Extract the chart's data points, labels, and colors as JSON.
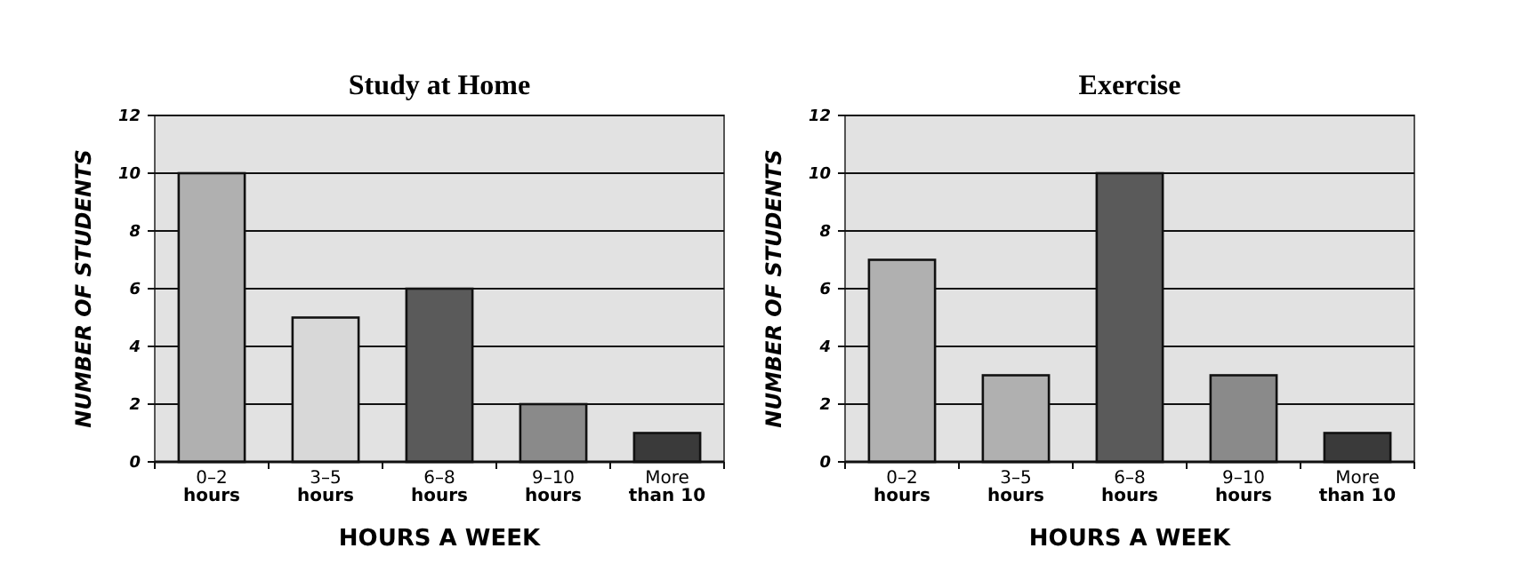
{
  "chart_data": [
    {
      "type": "bar",
      "title": "Study at Home",
      "xlabel": "HOURS A WEEK",
      "ylabel": "NUMBER OF STUDENTS",
      "categories": [
        "0–2 hours",
        "3–5 hours",
        "6–8 hours",
        "9–10 hours",
        "More than 10"
      ],
      "values": [
        10,
        5,
        6,
        2,
        1
      ],
      "colors": [
        "#b0b0b0",
        "#d8d8d8",
        "#5a5a5a",
        "#8a8a8a",
        "#3a3a3a"
      ],
      "ylim": [
        0,
        12
      ],
      "yticks": [
        0,
        2,
        4,
        6,
        8,
        10,
        12
      ],
      "grid": "y"
    },
    {
      "type": "bar",
      "title": "Exercise",
      "xlabel": "HOURS A WEEK",
      "ylabel": "NUMBER OF STUDENTS",
      "categories": [
        "0–2 hours",
        "3–5 hours",
        "6–8 hours",
        "9–10 hours",
        "More than 10"
      ],
      "values": [
        7,
        3,
        10,
        3,
        1
      ],
      "colors": [
        "#b0b0b0",
        "#b0b0b0",
        "#5a5a5a",
        "#8a8a8a",
        "#3a3a3a"
      ],
      "ylim": [
        0,
        12
      ],
      "yticks": [
        0,
        2,
        4,
        6,
        8,
        10,
        12
      ],
      "grid": "y"
    }
  ]
}
